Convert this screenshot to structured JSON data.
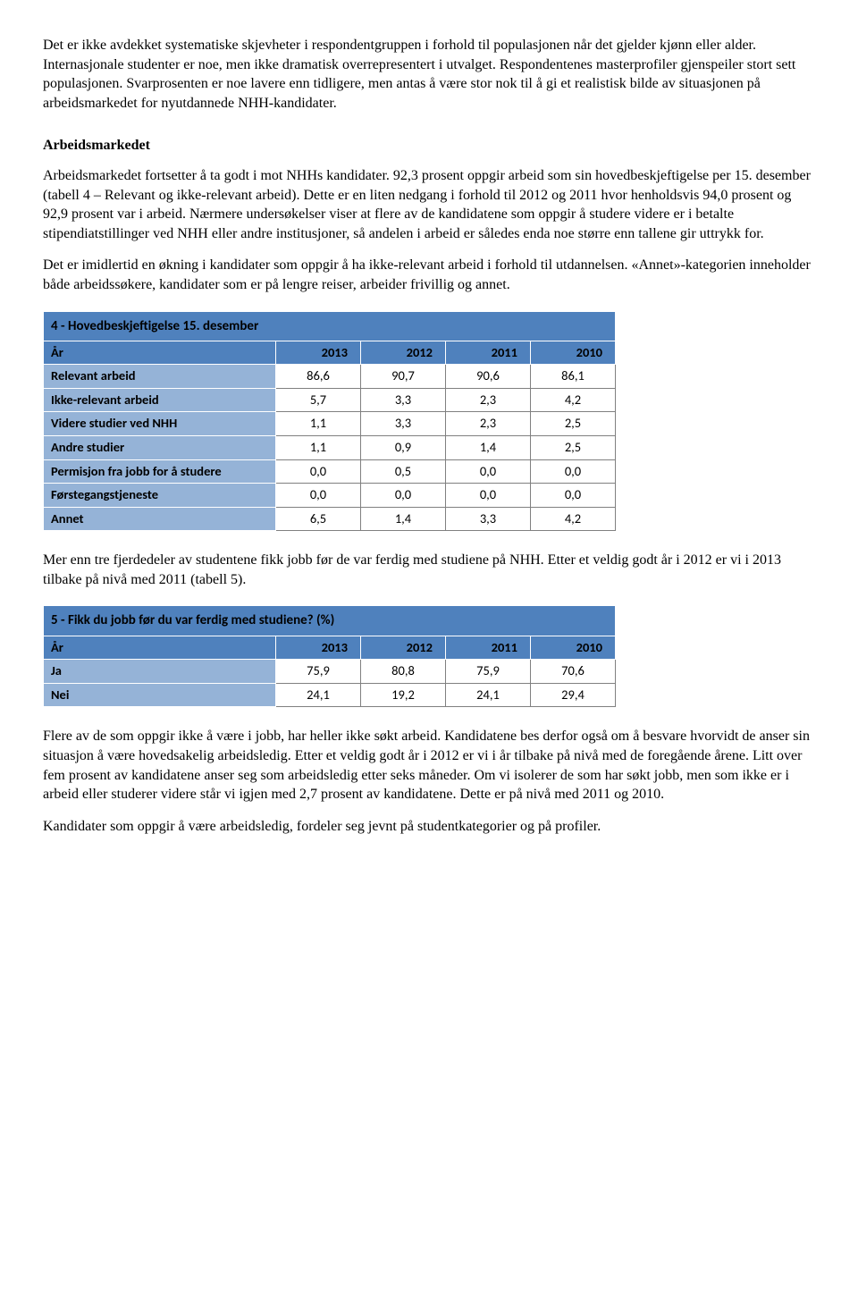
{
  "paragraphs": {
    "p1": "Det er ikke avdekket systematiske skjevheter i respondentgruppen i forhold til populasjonen når det gjelder kjønn eller alder. Internasjonale studenter er noe, men ikke dramatisk overrepresentert i utvalget. Respondentenes masterprofiler gjenspeiler stort sett populasjonen. Svarprosenten er noe lavere enn tidligere, men antas å være stor nok til å gi et realistisk bilde av situasjonen på arbeidsmarkedet for nyutdannede NHH-kandidater.",
    "h1": "Arbeidsmarkedet",
    "p2": "Arbeidsmarkedet fortsetter å ta godt i mot NHHs kandidater. 92,3 prosent oppgir arbeid som sin hovedbeskjeftigelse per 15. desember (tabell 4 – Relevant og ikke-relevant arbeid). Dette er en liten nedgang i forhold til 2012 og 2011 hvor henholdsvis 94,0 prosent og 92,9 prosent var i arbeid. Nærmere undersøkelser viser at flere av de kandidatene som oppgir å studere videre er i betalte stipendiatstillinger ved NHH eller andre institusjoner, så andelen i arbeid er således enda noe større enn tallene gir uttrykk for.",
    "p3": "Det er imidlertid en økning i kandidater som oppgir å ha ikke-relevant arbeid i forhold til utdannelsen. «Annet»-kategorien inneholder både arbeidssøkere, kandidater som er på lengre reiser, arbeider frivillig og annet.",
    "p4": "Mer enn tre fjerdedeler av studentene fikk jobb før de var ferdig med studiene på NHH. Etter et veldig godt år i 2012 er vi i 2013 tilbake på nivå med 2011 (tabell 5).",
    "p5": "Flere av de som oppgir ikke å være i jobb, har heller ikke søkt arbeid. Kandidatene bes derfor også om å besvare hvorvidt de anser sin situasjon å være hovedsakelig arbeidsledig. Etter et veldig godt år i 2012 er vi i år tilbake på nivå med de foregående årene. Litt over fem prosent av kandidatene anser seg som arbeidsledig etter seks måneder. Om vi isolerer de som har søkt jobb, men som ikke er i arbeid eller studerer videre står vi igjen med 2,7 prosent av kandidatene. Dette er på nivå med 2011 og 2010.",
    "p6": "Kandidater som oppgir å være arbeidsledig, fordeler seg jevnt på studentkategorier og på profiler."
  },
  "table4": {
    "title": "4 - Hovedbeskjeftigelse 15. desember",
    "year_label": "År",
    "years": [
      "2013",
      "2012",
      "2011",
      "2010"
    ],
    "rows": [
      {
        "label": "Relevant arbeid",
        "vals": [
          "86,6",
          "90,7",
          "90,6",
          "86,1"
        ]
      },
      {
        "label": "Ikke-relevant arbeid",
        "vals": [
          "5,7",
          "3,3",
          "2,3",
          "4,2"
        ]
      },
      {
        "label": "Videre studier ved NHH",
        "vals": [
          "1,1",
          "3,3",
          "2,3",
          "2,5"
        ]
      },
      {
        "label": "Andre studier",
        "vals": [
          "1,1",
          "0,9",
          "1,4",
          "2,5"
        ]
      },
      {
        "label": "Permisjon fra jobb for å studere",
        "vals": [
          "0,0",
          "0,5",
          "0,0",
          "0,0"
        ]
      },
      {
        "label": "Førstegangstjeneste",
        "vals": [
          "0,0",
          "0,0",
          "0,0",
          "0,0"
        ]
      },
      {
        "label": "Annet",
        "vals": [
          "6,5",
          "1,4",
          "3,3",
          "4,2"
        ]
      }
    ],
    "style": {
      "label_col_w": 260,
      "data_col_w": 95,
      "title_bg": "#4f81bd",
      "header_bg": "#4f81bd",
      "row_label_bg": "#95b3d7",
      "data_bg": "#ffffff",
      "title_border": "#ffffff",
      "header_border": "#ffffff",
      "rowlabel_border": "#ffffff",
      "data_v_border": "#808080",
      "data_h_border": "#808080",
      "outer_bottom_border": "#808080"
    }
  },
  "table5": {
    "title": "5 - Fikk du jobb før du var ferdig med studiene? (%)",
    "year_label": "År",
    "years": [
      "2013",
      "2012",
      "2011",
      "2010"
    ],
    "rows": [
      {
        "label": "Ja",
        "vals": [
          "75,9",
          "80,8",
          "75,9",
          "70,6"
        ]
      },
      {
        "label": "Nei",
        "vals": [
          "24,1",
          "19,2",
          "24,1",
          "29,4"
        ]
      }
    ],
    "style": {
      "label_col_w": 260,
      "data_col_w": 95,
      "title_bg": "#4f81bd",
      "header_bg": "#4f81bd",
      "row_label_bg": "#95b3d7",
      "data_bg": "#ffffff",
      "title_border": "#ffffff",
      "header_border": "#ffffff",
      "rowlabel_border": "#ffffff",
      "data_v_border": "#808080",
      "data_h_border": "#808080",
      "outer_bottom_border": "#808080"
    }
  }
}
